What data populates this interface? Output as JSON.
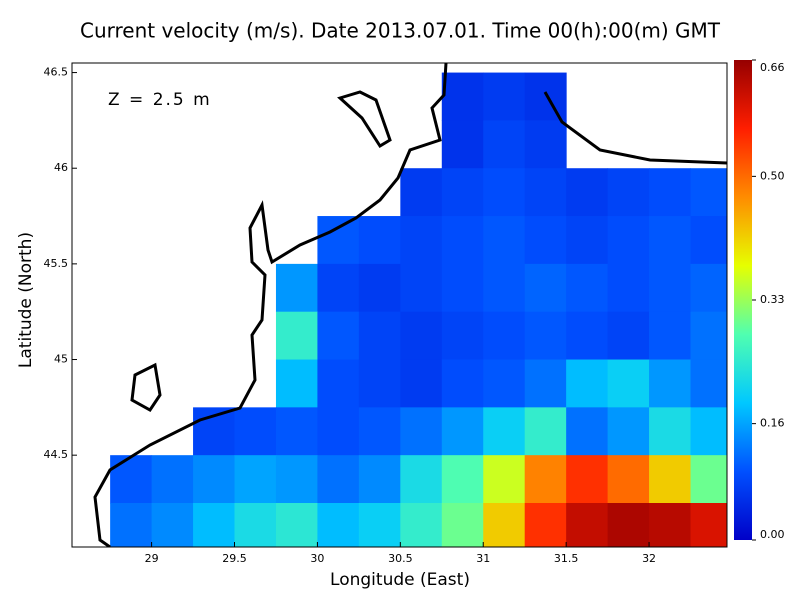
{
  "chart_data": {
    "type": "velocity-map",
    "title": "Current velocity (m/s). Date 2013.07.01. Time 00(h):00(m) GMT",
    "annotation": "Z = 2.5 m",
    "x_label": "Longitude (East)",
    "y_label": "Latitude (North)",
    "xlim": [
      28.52,
      32.47
    ],
    "ylim": [
      44.02,
      46.55
    ],
    "xticks": [
      29,
      29.5,
      30,
      30.5,
      31,
      31.5,
      32
    ],
    "yticks": [
      44.5,
      45,
      45.5,
      46,
      46.5
    ],
    "lon": [
      28.625,
      28.875,
      29.125,
      29.375,
      29.625,
      29.875,
      30.125,
      30.375,
      30.625,
      30.875,
      31.125,
      31.375,
      31.625,
      31.875,
      32.125,
      32.375
    ],
    "lat": [
      46.375,
      46.125,
      45.875,
      45.625,
      45.375,
      45.125,
      44.875,
      44.625,
      44.375,
      44.125
    ],
    "speed": [
      [
        null,
        null,
        null,
        null,
        null,
        null,
        null,
        null,
        null,
        0.06,
        0.07,
        0.06,
        null,
        null,
        null,
        null
      ],
      [
        null,
        null,
        null,
        null,
        null,
        null,
        null,
        null,
        null,
        0.06,
        0.08,
        0.07,
        null,
        null,
        null,
        null
      ],
      [
        null,
        null,
        null,
        null,
        null,
        null,
        null,
        null,
        0.07,
        0.08,
        0.09,
        0.08,
        0.07,
        0.08,
        0.09,
        0.1
      ],
      [
        null,
        null,
        null,
        null,
        null,
        null,
        0.1,
        0.09,
        0.08,
        0.09,
        0.1,
        0.09,
        0.08,
        0.09,
        0.1,
        0.09
      ],
      [
        null,
        null,
        null,
        null,
        null,
        0.15,
        0.08,
        0.07,
        0.08,
        0.09,
        0.1,
        0.11,
        0.1,
        0.09,
        0.1,
        0.11
      ],
      [
        null,
        null,
        null,
        null,
        null,
        0.25,
        0.1,
        0.08,
        0.07,
        0.08,
        0.09,
        0.1,
        0.09,
        0.08,
        0.1,
        0.12
      ],
      [
        null,
        null,
        null,
        null,
        null,
        0.18,
        0.09,
        0.08,
        0.07,
        0.09,
        0.1,
        0.12,
        0.18,
        0.2,
        0.15,
        0.12
      ],
      [
        null,
        null,
        null,
        0.08,
        0.09,
        0.1,
        0.09,
        0.1,
        0.12,
        0.15,
        0.2,
        0.25,
        0.12,
        0.15,
        0.22,
        0.18
      ],
      [
        null,
        0.1,
        0.12,
        0.14,
        0.16,
        0.15,
        0.12,
        0.14,
        0.22,
        0.28,
        0.36,
        0.48,
        0.55,
        0.5,
        0.42,
        0.3
      ],
      [
        null,
        0.12,
        0.14,
        0.18,
        0.22,
        0.24,
        0.18,
        0.2,
        0.25,
        0.3,
        0.42,
        0.55,
        0.62,
        0.64,
        0.63,
        0.6
      ]
    ],
    "colormap": [
      "#0000c8",
      "#0050ff",
      "#00c8ff",
      "#50ffb0",
      "#e6ff00",
      "#ff8c00",
      "#ff1e00",
      "#960000"
    ],
    "colorbar": {
      "lim": [
        0,
        0.66
      ],
      "ticks": [
        {
          "value": 0,
          "label": "0.00"
        },
        {
          "value": 0.16,
          "label": "0.16"
        },
        {
          "value": 0.33,
          "label": "0.33"
        },
        {
          "value": 0.5,
          "label": "0.50"
        },
        {
          "value": 0.66,
          "label": "0.66"
        }
      ]
    }
  }
}
